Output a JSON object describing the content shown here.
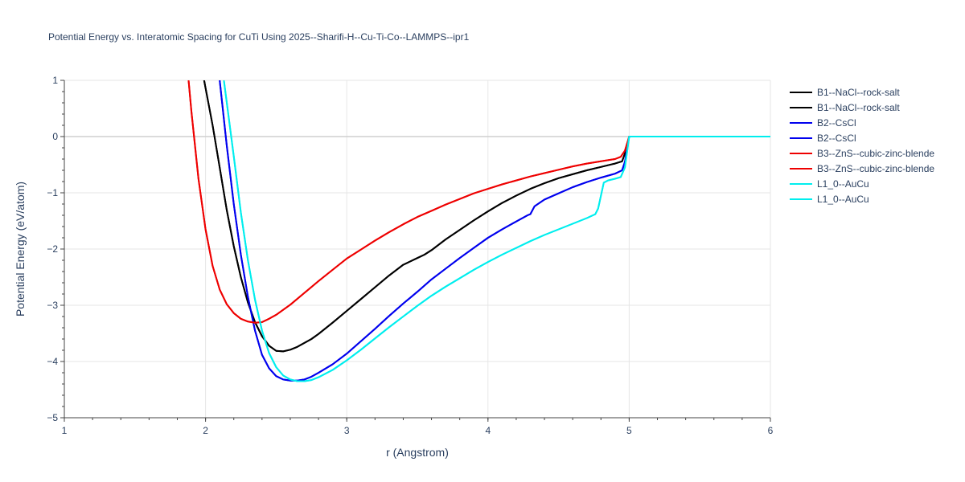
{
  "chart_data": {
    "type": "line",
    "title": "Potential Energy vs. Interatomic Spacing for CuTi Using 2025--Sharifi-H--Cu-Ti-Co--LAMMPS--ipr1",
    "xlabel": "r (Angstrom)",
    "ylabel": "Potential Energy (eV/atom)",
    "xlim": [
      1,
      6
    ],
    "ylim": [
      -5,
      1
    ],
    "xticks": [
      "1",
      "2",
      "3",
      "4",
      "5",
      "6"
    ],
    "yticks": [
      "1",
      "0",
      "−1",
      "−2",
      "−3",
      "−4",
      "−5"
    ],
    "grid": true,
    "legend_position": "top-right",
    "series": [
      {
        "name": "B1--NaCl--rock-salt",
        "color": "#000000",
        "x": [
          1.99,
          2.05,
          2.1,
          2.15,
          2.2,
          2.25,
          2.3,
          2.35,
          2.4,
          2.45,
          2.5,
          2.55,
          2.6,
          2.65,
          2.7,
          2.75,
          2.8,
          2.9,
          3.0,
          3.1,
          3.2,
          3.3,
          3.4,
          3.5,
          3.55,
          3.6,
          3.7,
          3.8,
          3.9,
          4.0,
          4.1,
          4.2,
          4.3,
          4.4,
          4.5,
          4.6,
          4.7,
          4.8,
          4.9,
          4.95,
          4.97,
          5.0,
          5.5,
          6.0
        ],
        "y": [
          1.0,
          0.2,
          -0.55,
          -1.3,
          -1.95,
          -2.5,
          -2.95,
          -3.3,
          -3.55,
          -3.72,
          -3.81,
          -3.82,
          -3.79,
          -3.74,
          -3.67,
          -3.6,
          -3.51,
          -3.31,
          -3.1,
          -2.89,
          -2.68,
          -2.47,
          -2.28,
          -2.16,
          -2.1,
          -2.02,
          -1.83,
          -1.66,
          -1.49,
          -1.33,
          -1.18,
          -1.05,
          -0.93,
          -0.83,
          -0.74,
          -0.67,
          -0.6,
          -0.54,
          -0.48,
          -0.44,
          -0.3,
          0.0,
          0.0,
          0.0
        ]
      },
      {
        "name": "B1--NaCl--rock-salt",
        "color": "#000000",
        "x": [
          1.99,
          2.05,
          2.1,
          2.15,
          2.2,
          2.25,
          2.3,
          2.35,
          2.4,
          2.45,
          2.5,
          2.55,
          2.6,
          2.65,
          2.7,
          2.75,
          2.8,
          2.9,
          3.0,
          3.1,
          3.2,
          3.3,
          3.4,
          3.5,
          3.55,
          3.6,
          3.7,
          3.8,
          3.9,
          4.0,
          4.1,
          4.2,
          4.3,
          4.4,
          4.5,
          4.6,
          4.7,
          4.8,
          4.9,
          4.95,
          4.97,
          5.0,
          5.5,
          6.0
        ],
        "y": [
          1.0,
          0.2,
          -0.55,
          -1.3,
          -1.95,
          -2.5,
          -2.95,
          -3.3,
          -3.55,
          -3.72,
          -3.81,
          -3.82,
          -3.79,
          -3.74,
          -3.67,
          -3.6,
          -3.51,
          -3.31,
          -3.1,
          -2.89,
          -2.68,
          -2.47,
          -2.28,
          -2.16,
          -2.1,
          -2.02,
          -1.83,
          -1.66,
          -1.49,
          -1.33,
          -1.18,
          -1.05,
          -0.93,
          -0.83,
          -0.74,
          -0.67,
          -0.6,
          -0.54,
          -0.48,
          -0.44,
          -0.3,
          0.0,
          0.0,
          0.0
        ]
      },
      {
        "name": "B2--CsCl",
        "color": "#0000ee",
        "x": [
          2.1,
          2.15,
          2.2,
          2.25,
          2.3,
          2.35,
          2.4,
          2.45,
          2.5,
          2.55,
          2.6,
          2.65,
          2.7,
          2.75,
          2.8,
          2.9,
          3.0,
          3.1,
          3.2,
          3.3,
          3.4,
          3.5,
          3.6,
          3.7,
          3.8,
          3.9,
          4.0,
          4.1,
          4.2,
          4.28,
          4.3,
          4.33,
          4.4,
          4.5,
          4.6,
          4.7,
          4.8,
          4.9,
          4.95,
          4.97,
          5.0,
          5.5,
          6.0
        ],
        "y": [
          1.0,
          -0.15,
          -1.2,
          -2.1,
          -2.85,
          -3.45,
          -3.88,
          -4.12,
          -4.26,
          -4.32,
          -4.34,
          -4.34,
          -4.32,
          -4.27,
          -4.2,
          -4.05,
          -3.86,
          -3.64,
          -3.42,
          -3.19,
          -2.97,
          -2.76,
          -2.54,
          -2.35,
          -2.16,
          -1.98,
          -1.8,
          -1.65,
          -1.51,
          -1.4,
          -1.38,
          -1.24,
          -1.12,
          -1.01,
          -0.9,
          -0.81,
          -0.73,
          -0.66,
          -0.6,
          -0.45,
          0.0,
          0.0,
          0.0
        ]
      },
      {
        "name": "B2--CsCl",
        "color": "#0000ee",
        "x": [
          2.1,
          2.15,
          2.2,
          2.25,
          2.3,
          2.35,
          2.4,
          2.45,
          2.5,
          2.55,
          2.6,
          2.65,
          2.7,
          2.75,
          2.8,
          2.9,
          3.0,
          3.1,
          3.2,
          3.3,
          3.4,
          3.5,
          3.6,
          3.7,
          3.8,
          3.9,
          4.0,
          4.1,
          4.2,
          4.28,
          4.3,
          4.33,
          4.4,
          4.5,
          4.6,
          4.7,
          4.8,
          4.9,
          4.95,
          4.97,
          5.0,
          5.5,
          6.0
        ],
        "y": [
          1.0,
          -0.15,
          -1.2,
          -2.1,
          -2.85,
          -3.45,
          -3.88,
          -4.12,
          -4.26,
          -4.32,
          -4.34,
          -4.34,
          -4.32,
          -4.27,
          -4.2,
          -4.05,
          -3.86,
          -3.64,
          -3.42,
          -3.19,
          -2.97,
          -2.76,
          -2.54,
          -2.35,
          -2.16,
          -1.98,
          -1.8,
          -1.65,
          -1.51,
          -1.4,
          -1.38,
          -1.24,
          -1.12,
          -1.01,
          -0.9,
          -0.81,
          -0.73,
          -0.66,
          -0.6,
          -0.45,
          0.0,
          0.0,
          0.0
        ]
      },
      {
        "name": "B3--ZnS--cubic-zinc-blende",
        "color": "#ee0000",
        "x": [
          1.88,
          1.9,
          1.95,
          2.0,
          2.05,
          2.1,
          2.15,
          2.2,
          2.25,
          2.3,
          2.35,
          2.4,
          2.45,
          2.5,
          2.6,
          2.7,
          2.8,
          2.9,
          3.0,
          3.1,
          3.2,
          3.3,
          3.4,
          3.5,
          3.6,
          3.7,
          3.8,
          3.9,
          4.0,
          4.1,
          4.2,
          4.3,
          4.4,
          4.5,
          4.6,
          4.7,
          4.8,
          4.9,
          4.94,
          4.97,
          5.0,
          5.5,
          6.0
        ],
        "y": [
          1.0,
          0.45,
          -0.75,
          -1.65,
          -2.3,
          -2.72,
          -2.98,
          -3.14,
          -3.24,
          -3.29,
          -3.31,
          -3.3,
          -3.24,
          -3.17,
          -2.99,
          -2.78,
          -2.57,
          -2.37,
          -2.17,
          -2.01,
          -1.85,
          -1.7,
          -1.56,
          -1.43,
          -1.32,
          -1.21,
          -1.11,
          -1.01,
          -0.93,
          -0.85,
          -0.78,
          -0.71,
          -0.65,
          -0.59,
          -0.53,
          -0.48,
          -0.44,
          -0.4,
          -0.36,
          -0.25,
          0.0,
          0.0,
          0.0
        ]
      },
      {
        "name": "B3--ZnS--cubic-zinc-blende",
        "color": "#ee0000",
        "x": [
          1.88,
          1.9,
          1.95,
          2.0,
          2.05,
          2.1,
          2.15,
          2.2,
          2.25,
          2.3,
          2.35,
          2.4,
          2.45,
          2.5,
          2.6,
          2.7,
          2.8,
          2.9,
          3.0,
          3.1,
          3.2,
          3.3,
          3.4,
          3.5,
          3.6,
          3.7,
          3.8,
          3.9,
          4.0,
          4.1,
          4.2,
          4.3,
          4.4,
          4.5,
          4.6,
          4.7,
          4.8,
          4.9,
          4.94,
          4.97,
          5.0,
          5.5,
          6.0
        ],
        "y": [
          1.0,
          0.45,
          -0.75,
          -1.65,
          -2.3,
          -2.72,
          -2.98,
          -3.14,
          -3.24,
          -3.29,
          -3.31,
          -3.3,
          -3.24,
          -3.17,
          -2.99,
          -2.78,
          -2.57,
          -2.37,
          -2.17,
          -2.01,
          -1.85,
          -1.7,
          -1.56,
          -1.43,
          -1.32,
          -1.21,
          -1.11,
          -1.01,
          -0.93,
          -0.85,
          -0.78,
          -0.71,
          -0.65,
          -0.59,
          -0.53,
          -0.48,
          -0.44,
          -0.4,
          -0.36,
          -0.25,
          0.0,
          0.0,
          0.0
        ]
      },
      {
        "name": "L1_0--AuCu",
        "color": "#00eeee",
        "x": [
          2.13,
          2.2,
          2.25,
          2.3,
          2.35,
          2.4,
          2.45,
          2.5,
          2.55,
          2.6,
          2.65,
          2.7,
          2.75,
          2.8,
          2.9,
          3.0,
          3.1,
          3.2,
          3.3,
          3.4,
          3.5,
          3.6,
          3.7,
          3.8,
          3.9,
          4.0,
          4.1,
          4.2,
          4.3,
          4.4,
          4.5,
          4.6,
          4.7,
          4.76,
          4.78,
          4.8,
          4.82,
          4.85,
          4.9,
          4.94,
          4.97,
          5.0,
          5.5,
          6.0
        ],
        "y": [
          1.0,
          -0.35,
          -1.35,
          -2.2,
          -2.9,
          -3.45,
          -3.85,
          -4.1,
          -4.25,
          -4.32,
          -4.35,
          -4.35,
          -4.33,
          -4.28,
          -4.15,
          -3.98,
          -3.79,
          -3.59,
          -3.39,
          -3.2,
          -3.01,
          -2.83,
          -2.67,
          -2.52,
          -2.37,
          -2.23,
          -2.1,
          -1.98,
          -1.86,
          -1.75,
          -1.65,
          -1.55,
          -1.45,
          -1.38,
          -1.28,
          -1.05,
          -0.82,
          -0.78,
          -0.75,
          -0.72,
          -0.55,
          0.0,
          0.0,
          0.0
        ]
      },
      {
        "name": "L1_0--AuCu",
        "color": "#00eeee",
        "x": [
          2.13,
          2.2,
          2.25,
          2.3,
          2.35,
          2.4,
          2.45,
          2.5,
          2.55,
          2.6,
          2.65,
          2.7,
          2.75,
          2.8,
          2.9,
          3.0,
          3.1,
          3.2,
          3.3,
          3.4,
          3.5,
          3.6,
          3.7,
          3.8,
          3.9,
          4.0,
          4.1,
          4.2,
          4.3,
          4.4,
          4.5,
          4.6,
          4.7,
          4.76,
          4.78,
          4.8,
          4.82,
          4.85,
          4.9,
          4.94,
          4.97,
          5.0,
          5.5,
          6.0
        ],
        "y": [
          1.0,
          -0.35,
          -1.35,
          -2.2,
          -2.9,
          -3.45,
          -3.85,
          -4.1,
          -4.25,
          -4.32,
          -4.35,
          -4.35,
          -4.33,
          -4.28,
          -4.15,
          -3.98,
          -3.79,
          -3.59,
          -3.39,
          -3.2,
          -3.01,
          -2.83,
          -2.67,
          -2.52,
          -2.37,
          -2.23,
          -2.1,
          -1.98,
          -1.86,
          -1.75,
          -1.65,
          -1.55,
          -1.45,
          -1.38,
          -1.28,
          -1.05,
          -0.82,
          -0.78,
          -0.75,
          -0.72,
          -0.55,
          0.0,
          0.0,
          0.0
        ]
      }
    ]
  }
}
